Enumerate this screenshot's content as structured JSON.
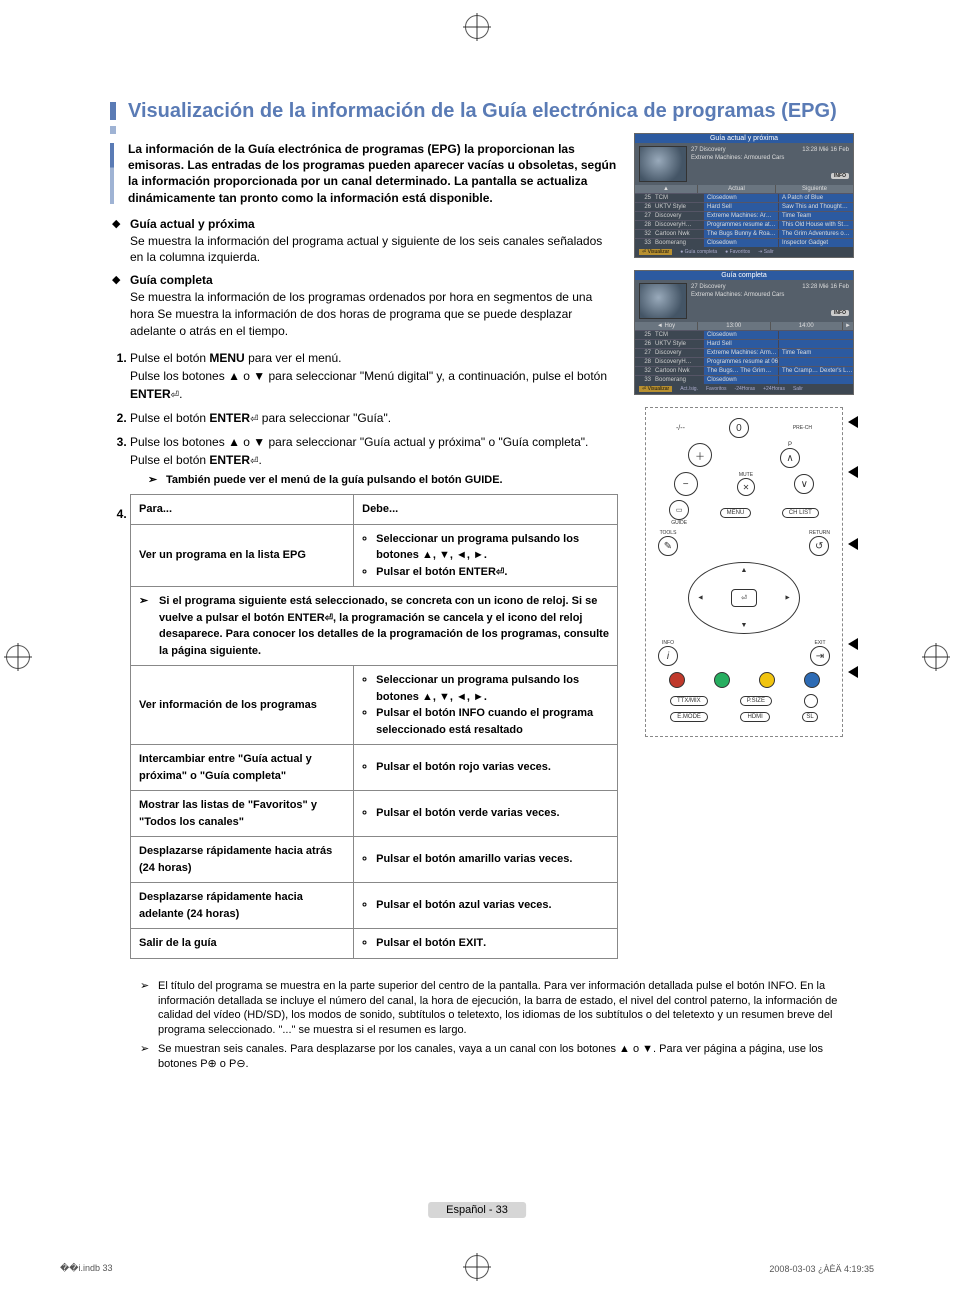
{
  "page": {
    "title": "Visualización de la información de la Guía electrónica de programas (EPG)",
    "intro": "La información de la Guía electrónica de programas (EPG) la proporcionan las emisoras. Las entradas de los programas pueden aparecer vacías u obsoletas, según la información proporcionada por un canal determinado. La pantalla se actualiza dinámicamente tan pronto como la información está disponible.",
    "footer_label": "Español - 33",
    "print_left": "��i.indb   33",
    "print_right": "2008-03-03   ¿ÀÈÄ 4:19:35"
  },
  "bullets": [
    {
      "head": "Guía actual y próxima",
      "body": "Se muestra la información del programa actual y siguiente de los seis canales señalados en la columna izquierda."
    },
    {
      "head": "Guía completa",
      "body": "Se muestra la información de los programas ordenados por hora en segmentos de una hora Se muestra la información de dos horas de programa que se puede desplazar adelante o atrás en el tiempo."
    }
  ],
  "steps": [
    {
      "n": "1.",
      "body_pre": "Pulse el botón ",
      "kw1": "MENU",
      "body_mid": " para ver el menú.\nPulse los botones ▲ o ▼ para seleccionar \"Menú digital\" y, a continuación, pulse el botón ",
      "kw2": "ENTER",
      "body_post": "."
    },
    {
      "n": "2.",
      "body_pre": "Pulse el botón ",
      "kw1": "ENTER",
      "body_mid": " para seleccionar \"Guía\".",
      "kw2": "",
      "body_post": ""
    },
    {
      "n": "3.",
      "body_pre": "Pulse los botones ▲ o ▼ para seleccionar \"Guía actual y próxima\" o \"Guía completa\". Pulse el botón ",
      "kw1": "ENTER",
      "body_mid": ".",
      "kw2": "",
      "body_post": ""
    }
  ],
  "step3_note": "También puede ver el menú de la guía pulsando el botón GUIDE.",
  "table": {
    "header_left": "Para...",
    "header_right": "Debe...",
    "rows": [
      {
        "left": "Ver un programa en la lista EPG",
        "right": [
          "Seleccionar un programa pulsando los botones ▲, ▼, ◄, ►.",
          "Pulsar el botón ENTER."
        ]
      },
      {
        "note": "Si el programa siguiente está seleccionado, se concreta con un icono de reloj. Si se vuelve a pulsar el botón ENTER, la programación se cancela y el icono del reloj desaparece. Para conocer los detalles de la programación de los programas, consulte la página siguiente."
      },
      {
        "left": "Ver información de los programas",
        "right": [
          "Seleccionar un programa pulsando los botones ▲, ▼, ◄, ►.",
          "Pulsar el botón INFO cuando el programa seleccionado está resaltado"
        ]
      },
      {
        "left": "Intercambiar entre \"Guía actual y próxima\" o \"Guía completa\"",
        "right": [
          "Pulsar el botón rojo varias veces."
        ]
      },
      {
        "left": "Mostrar las listas de \"Favoritos\" y \"Todos los canales\"",
        "right": [
          "Pulsar el botón verde varias veces."
        ]
      },
      {
        "left": "Desplazarse rápidamente hacia atrás (24 horas)",
        "right": [
          "Pulsar el botón amarillo varias veces."
        ]
      },
      {
        "left": "Desplazarse rápidamente hacia adelante (24 horas)",
        "right": [
          "Pulsar el botón azul varias veces."
        ]
      },
      {
        "left": "Salir de la guía",
        "right": [
          "Pulsar el botón EXIT."
        ]
      }
    ]
  },
  "bottom_notes": [
    "El título del programa se muestra en la parte superior del centro de la pantalla. Para ver información detallada pulse el botón INFO. En la información detallada se incluye el número del canal, la hora de ejecución, la barra de estado, el nivel del control paterno, la información de calidad del vídeo (HD/SD), los modos de sonido, subtítulos o teletexto, los idiomas de los subtítulos o del teletexto y un resumen breve del programa seleccionado.  \"...\" se muestra si el resumen es largo.",
    "Se muestran seis canales. Para desplazarse por los canales, vaya a un canal con los botones ▲ o ▼. Para ver página a página, use los botones P⊕ o P⊖."
  ],
  "epg1": {
    "title": "Guía actual y próxima",
    "channel_now": "27 Discovery",
    "programme": "Extreme Machines: Armoured Cars",
    "time": "13:28  Mié 16 Feb",
    "info": "INFO",
    "col1": "Actual",
    "col2": "Siguiente",
    "rows": [
      {
        "n": "25",
        "ch": "TCM",
        "a": "Closedown",
        "b": "A Patch of Blue"
      },
      {
        "n": "26",
        "ch": "UKTV Style",
        "a": "Hard Sell",
        "b": "Saw This and Thought…"
      },
      {
        "n": "27",
        "ch": "Discovery",
        "a": "Extreme Machines: Ar…",
        "b": "Time Team"
      },
      {
        "n": "28",
        "ch": "DiscoveryH…",
        "a": "Programmes resume at…",
        "b": "This Old House with St…"
      },
      {
        "n": "32",
        "ch": "Cartoon Nwk",
        "a": "The Bugs Bunny & Roa…",
        "b": "The Grim Adventures o…"
      },
      {
        "n": "33",
        "ch": "Boomerang",
        "a": "Closedown",
        "b": "Inspector Gadget"
      }
    ],
    "footer": [
      "Visualizar",
      "Guía completa",
      "Favoritos",
      "Salir"
    ]
  },
  "epg2": {
    "title": "Guía completa",
    "channel_now": "27 Discovery",
    "programme": "Extreme Machines: Armoured Cars",
    "time": "13:28  Mié 16 Feb",
    "info": "INFO",
    "day": "Hoy",
    "col1": "13:00",
    "col2": "14:00",
    "rows": [
      {
        "n": "25",
        "ch": "TCM",
        "a": "Closedown",
        "b": ""
      },
      {
        "n": "26",
        "ch": "UKTV Style",
        "a": "Hard Sell",
        "b": ""
      },
      {
        "n": "27",
        "ch": "Discovery",
        "a": "Extreme Machines: Arm…",
        "b": "Time Team"
      },
      {
        "n": "28",
        "ch": "DiscoveryH…",
        "a": "Programmes resume at 06:00",
        "b": ""
      },
      {
        "n": "32",
        "ch": "Cartoon Nwk",
        "a": "The Bugs…   The Grim…",
        "b": "The Cramp…  Dexter's L…"
      },
      {
        "n": "33",
        "ch": "Boomerang",
        "a": "Closedown",
        "b": ""
      }
    ],
    "footer": [
      "Visualizar",
      "Act./sig.",
      "Favoritos",
      "-24Horas",
      "+24Horas",
      "Salir"
    ]
  },
  "remote": {
    "labels": {
      "power": "⏻",
      "pre_ch": "PRE-CH",
      "p": "P",
      "mute": "MUTE",
      "guide": "GUIDE",
      "menu": "MENU",
      "chlist": "CH LIST",
      "tools": "TOOLS",
      "return": "RETURN",
      "info": "INFO",
      "exit": "EXIT",
      "ttx": "TTX/MIX",
      "psize": "P.SIZE",
      "emode": "E.MODE",
      "hdmi": "HDMI",
      "sl": "SL"
    },
    "colors": [
      "#c0392b",
      "#27ae60",
      "#f1c40f",
      "#2d6bb4"
    ]
  }
}
